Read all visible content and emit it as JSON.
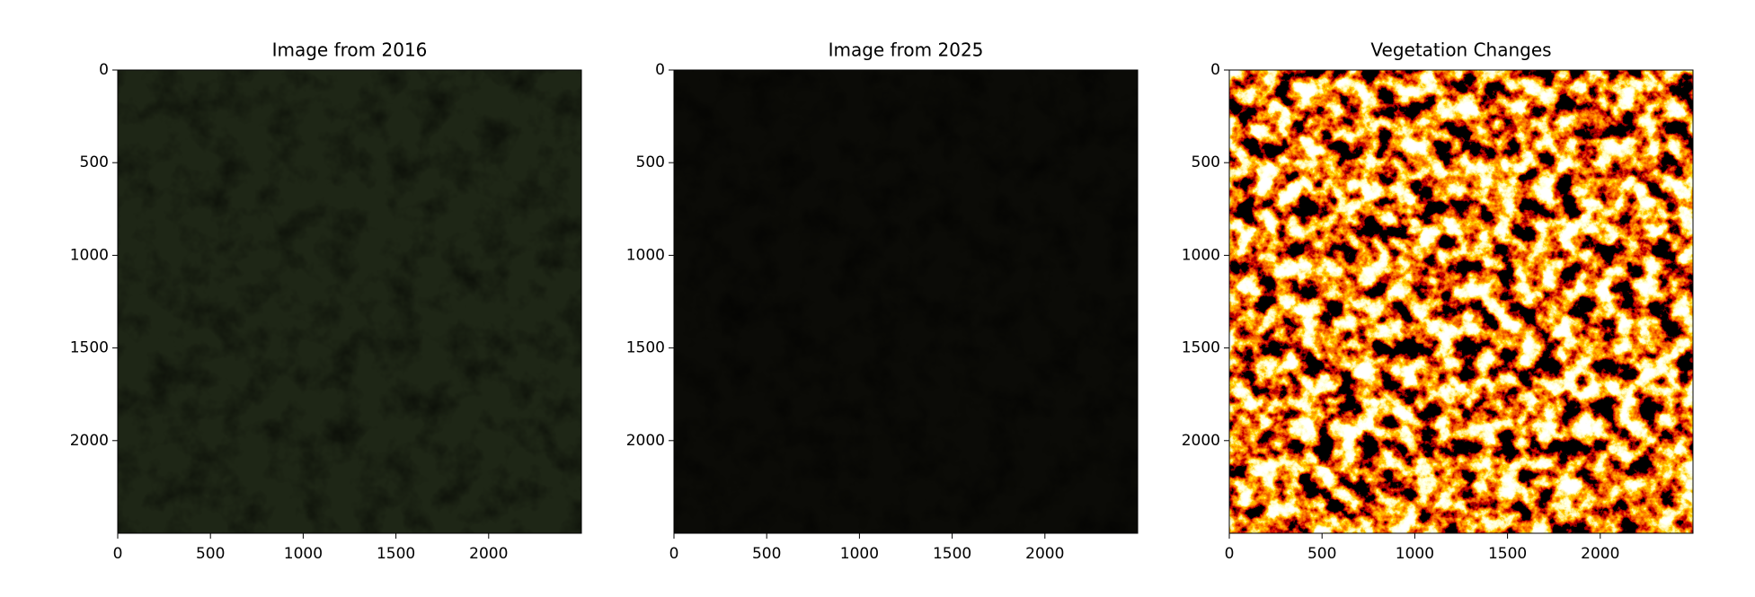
{
  "chart_data": [
    {
      "type": "image",
      "title": "Image from 2016",
      "color": "#1e2616",
      "xlim": [
        0,
        2500
      ],
      "ylim": [
        2500,
        0
      ],
      "xticks": [
        0,
        500,
        1000,
        1500,
        2000
      ],
      "yticks": [
        0,
        500,
        1000,
        1500,
        2000
      ]
    },
    {
      "type": "image",
      "title": "Image from 2025",
      "color": "#0b0b07",
      "xlim": [
        0,
        2500
      ],
      "ylim": [
        2500,
        0
      ],
      "xticks": [
        0,
        500,
        1000,
        1500,
        2000
      ],
      "yticks": [
        0,
        500,
        1000,
        1500,
        2000
      ]
    },
    {
      "type": "image",
      "title": "Vegetation Changes",
      "colormap": "hot",
      "xlim": [
        0,
        2500
      ],
      "ylim": [
        2500,
        0
      ],
      "xticks": [
        0,
        500,
        1000,
        1500,
        2000
      ],
      "yticks": [
        0,
        500,
        1000,
        1500,
        2000
      ]
    }
  ]
}
